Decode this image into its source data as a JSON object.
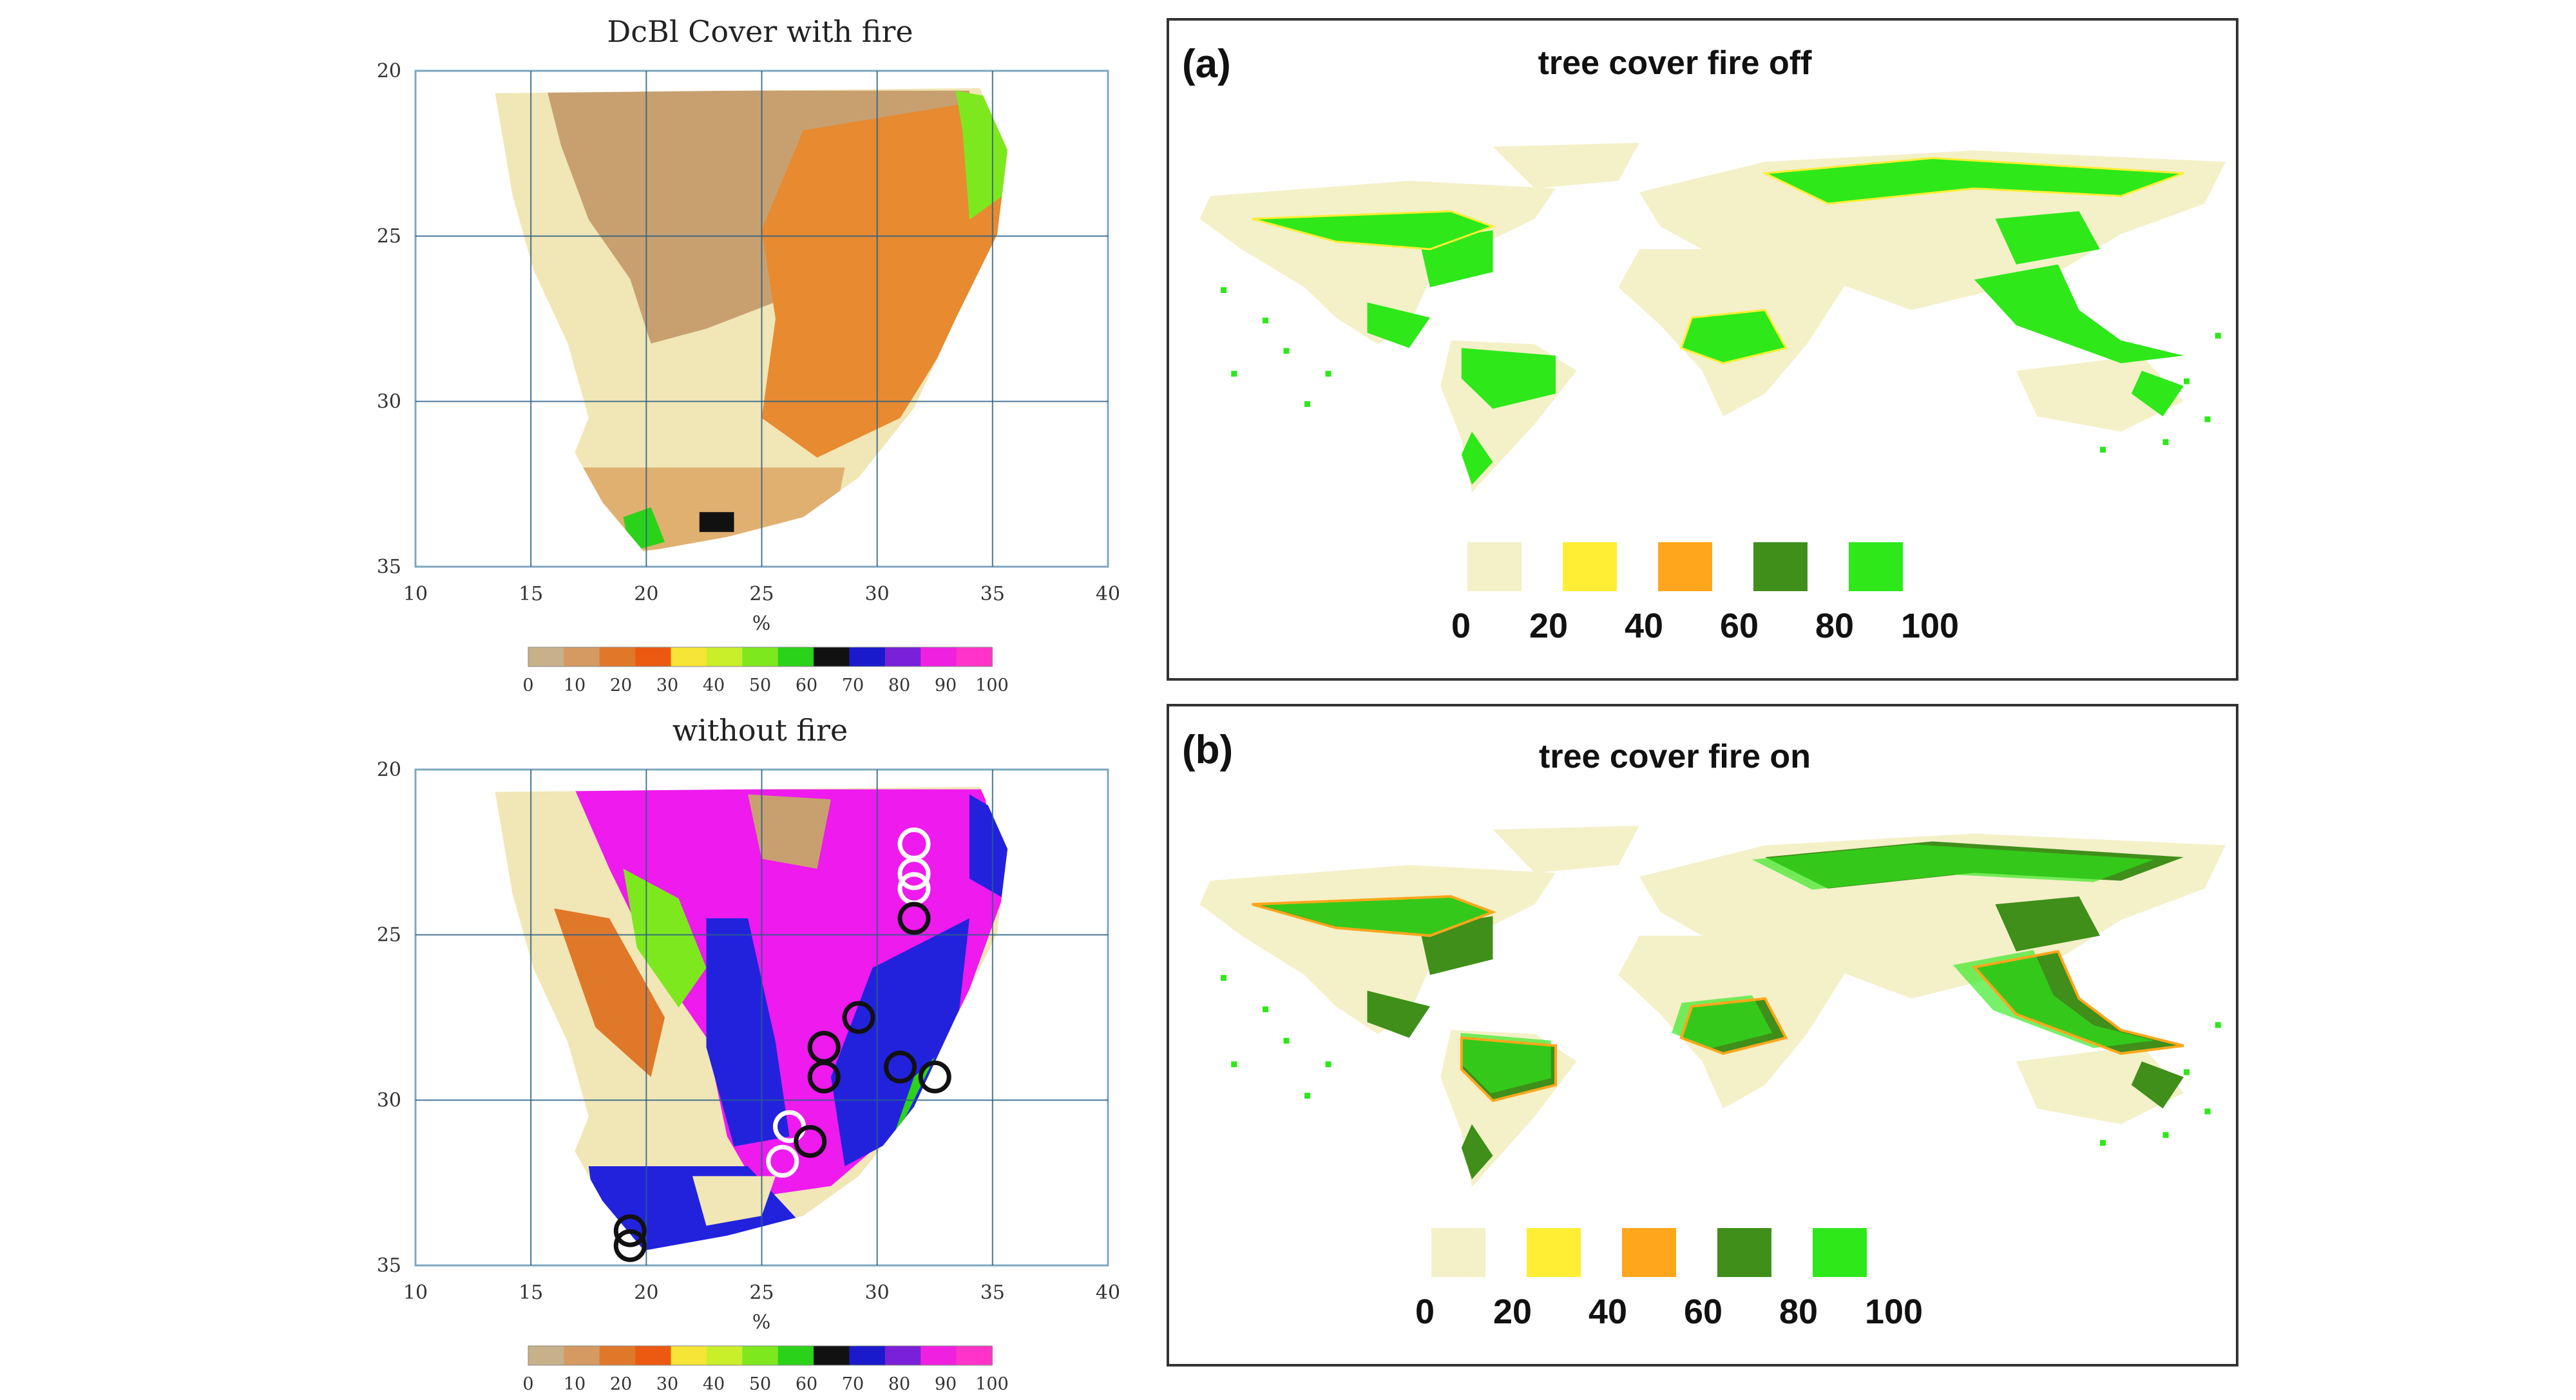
{
  "left_panels": [
    {
      "title": "DcBl Cover with fire",
      "x_ticks": [
        "10",
        "15",
        "20",
        "25",
        "30",
        "35",
        "40"
      ],
      "y_ticks": [
        "20",
        "25",
        "30",
        "35"
      ],
      "x_unit": "%",
      "colorbar_ticks": [
        "0",
        "10",
        "20",
        "30",
        "40",
        "50",
        "60",
        "70",
        "80",
        "90",
        "100"
      ]
    },
    {
      "title": "without fire",
      "x_ticks": [
        "10",
        "15",
        "20",
        "25",
        "30",
        "35",
        "40"
      ],
      "y_ticks": [
        "20",
        "25",
        "30",
        "35"
      ],
      "x_unit": "%",
      "colorbar_ticks": [
        "0",
        "10",
        "20",
        "30",
        "40",
        "50",
        "60",
        "70",
        "80",
        "90",
        "100"
      ]
    }
  ],
  "right_panels": [
    {
      "label": "(a)",
      "title": "tree cover fire off",
      "legend_labels": [
        "0",
        "20",
        "40",
        "60",
        "80",
        "100"
      ]
    },
    {
      "label": "(b)",
      "title": "tree cover fire on",
      "legend_labels": [
        "0",
        "20",
        "40",
        "60",
        "80",
        "100"
      ]
    }
  ],
  "colors": {
    "legend_classes": [
      "#f4f0c8",
      "#ffee33",
      "#ffa61c",
      "#3f8f1a",
      "#2ee81a"
    ],
    "colorbar": [
      "#c8b08a",
      "#d49a62",
      "#e0782a",
      "#ec5a12",
      "#f6e436",
      "#c9ee2a",
      "#7ee81e",
      "#2bd21a",
      "#111111",
      "#1a1acc",
      "#7a20d8",
      "#f020e0",
      "#ff33c8"
    ],
    "land_pale": "#f1e6b5",
    "tan": "#c8a070",
    "orange": "#e88a30",
    "magenta": "#ee1aee",
    "blue": "#2222dd",
    "green": "#2ee81a",
    "dark_green": "#3f8f1a"
  }
}
